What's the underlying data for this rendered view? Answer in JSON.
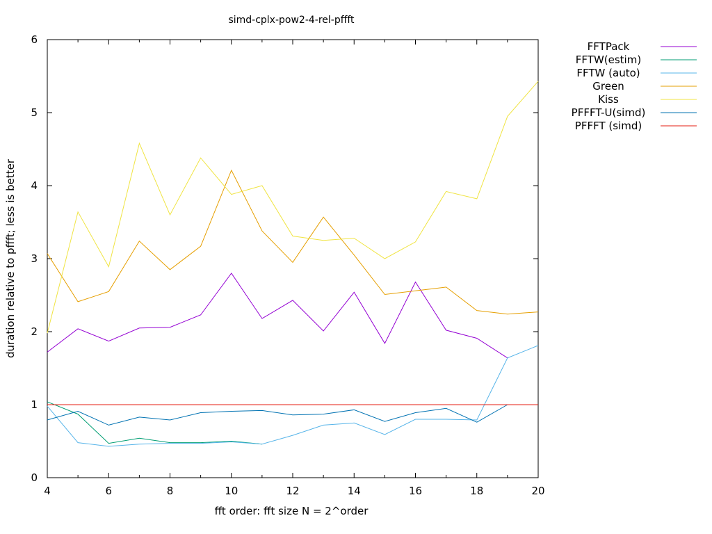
{
  "chart_data": {
    "type": "line",
    "title": "simd-cplx-pow2-4-rel-pffft",
    "xlabel": "fft order: fft size N = 2^order",
    "ylabel": "duration relative to pffft; less is better",
    "xlim": [
      4,
      20
    ],
    "ylim": [
      0,
      6
    ],
    "x_ticks": [
      4,
      6,
      8,
      10,
      12,
      14,
      16,
      18,
      20
    ],
    "y_ticks": [
      0,
      1,
      2,
      3,
      4,
      5,
      6
    ],
    "grid": false,
    "legend_position": "outside-top-right",
    "x": [
      4,
      5,
      6,
      7,
      8,
      9,
      10,
      11,
      12,
      13,
      14,
      15,
      16,
      17,
      18,
      19,
      20
    ],
    "series": [
      {
        "name": "FFTPack",
        "color": "#9400d3",
        "values": [
          1.72,
          2.04,
          1.87,
          2.05,
          2.06,
          2.23,
          2.8,
          2.18,
          2.43,
          2.01,
          2.54,
          1.84,
          2.68,
          2.02,
          1.91,
          1.64,
          null
        ]
      },
      {
        "name": "FFTW(estim)",
        "color": "#009e73",
        "values": [
          1.04,
          0.87,
          0.47,
          0.54,
          0.48,
          0.48,
          0.5,
          0.46,
          null,
          null,
          null,
          null,
          null,
          null,
          null,
          null,
          null
        ]
      },
      {
        "name": "FFTW (auto)",
        "color": "#56b4e9",
        "values": [
          0.98,
          0.48,
          0.43,
          0.46,
          0.47,
          0.47,
          0.49,
          0.46,
          0.58,
          0.72,
          0.75,
          0.59,
          0.8,
          0.8,
          0.79,
          1.64,
          1.81
        ]
      },
      {
        "name": "Green",
        "color": "#e69f00",
        "values": [
          3.07,
          2.41,
          2.55,
          3.24,
          2.85,
          3.17,
          4.21,
          3.38,
          2.95,
          3.57,
          3.05,
          2.51,
          2.56,
          2.61,
          2.29,
          2.24,
          2.27
        ]
      },
      {
        "name": "Kiss",
        "color": "#f0e442",
        "values": [
          1.98,
          3.64,
          2.89,
          4.58,
          3.6,
          4.38,
          3.88,
          4.0,
          3.31,
          3.25,
          3.28,
          3.0,
          3.23,
          3.92,
          3.82,
          4.95,
          5.43
        ]
      },
      {
        "name": "PFFFT-U(simd)",
        "color": "#0072b2",
        "values": [
          0.79,
          0.91,
          0.72,
          0.83,
          0.79,
          0.89,
          0.91,
          0.92,
          0.86,
          0.87,
          0.93,
          0.77,
          0.89,
          0.95,
          0.76,
          1.0,
          null
        ]
      },
      {
        "name": "PFFFT (simd)",
        "color": "#e51e10",
        "values": [
          1,
          1,
          1,
          1,
          1,
          1,
          1,
          1,
          1,
          1,
          1,
          1,
          1,
          1,
          1,
          1,
          1
        ]
      }
    ]
  }
}
